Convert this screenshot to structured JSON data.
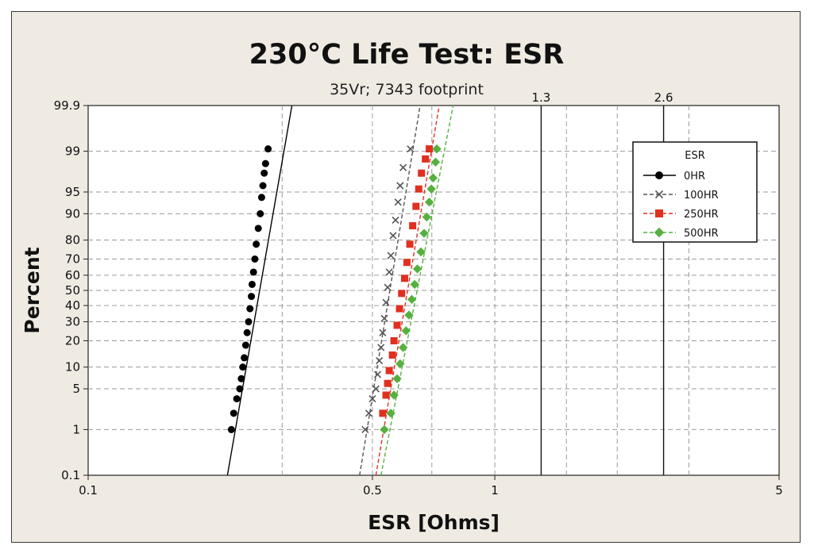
{
  "chart_data": {
    "type": "scatter",
    "title": "230°C Life Test: ESR",
    "subtitle": "35Vr; 7343 footprint",
    "xlabel": "ESR [Ohms]",
    "ylabel": "Percent",
    "x_scale": "log",
    "y_scale": "normal-probability",
    "xlim": [
      0.1,
      5
    ],
    "ylim": [
      0.1,
      99.9
    ],
    "x_ticks": [
      {
        "value": 0.1,
        "label": "0.1"
      },
      {
        "value": 0.5,
        "label": "0.5"
      },
      {
        "value": 1,
        "label": "1"
      },
      {
        "value": 5,
        "label": "5"
      }
    ],
    "x_gridlines": [
      0.3,
      0.5,
      0.7,
      1,
      1.5,
      2,
      3
    ],
    "y_ticks": [
      {
        "value": 0.1,
        "label": "0.1"
      },
      {
        "value": 1,
        "label": "1"
      },
      {
        "value": 5,
        "label": "5"
      },
      {
        "value": 10,
        "label": "10"
      },
      {
        "value": 20,
        "label": "20"
      },
      {
        "value": 30,
        "label": "30"
      },
      {
        "value": 40,
        "label": "40"
      },
      {
        "value": 50,
        "label": "50"
      },
      {
        "value": 60,
        "label": "60"
      },
      {
        "value": 70,
        "label": "70"
      },
      {
        "value": 80,
        "label": "80"
      },
      {
        "value": 90,
        "label": "90"
      },
      {
        "value": 95,
        "label": "95"
      },
      {
        "value": 99,
        "label": "99"
      },
      {
        "value": 99.9,
        "label": "99.9"
      }
    ],
    "reference_lines": [
      {
        "value": 1.3,
        "label": "1.3"
      },
      {
        "value": 2.6,
        "label": "2.6"
      }
    ],
    "grid": true,
    "legend": {
      "title": "ESR",
      "position": "top-right"
    },
    "series": [
      {
        "name": "0HR",
        "color": "#000000",
        "marker": "circle",
        "line_dash": "solid",
        "fit": {
          "p_low": 0.1,
          "x_low": 0.22,
          "p_high": 99.9,
          "x_high": 0.317
        },
        "points": [
          [
            0.225,
            1
          ],
          [
            0.228,
            2
          ],
          [
            0.232,
            3.5
          ],
          [
            0.236,
            5
          ],
          [
            0.238,
            7
          ],
          [
            0.24,
            10
          ],
          [
            0.242,
            13
          ],
          [
            0.244,
            18
          ],
          [
            0.246,
            24
          ],
          [
            0.248,
            30
          ],
          [
            0.25,
            38
          ],
          [
            0.252,
            46
          ],
          [
            0.253,
            54
          ],
          [
            0.255,
            62
          ],
          [
            0.257,
            70
          ],
          [
            0.259,
            78
          ],
          [
            0.262,
            85
          ],
          [
            0.265,
            90
          ],
          [
            0.267,
            94
          ],
          [
            0.269,
            96
          ],
          [
            0.271,
            97.5
          ],
          [
            0.273,
            98.3
          ],
          [
            0.277,
            99.1
          ]
        ]
      },
      {
        "name": "100HR",
        "color": "#555555",
        "marker": "x",
        "line_dash": "dashed",
        "fit": {
          "p_low": 0.1,
          "x_low": 0.465,
          "p_high": 99.9,
          "x_high": 0.655
        },
        "points": [
          [
            0.48,
            1
          ],
          [
            0.49,
            2
          ],
          [
            0.5,
            3.5
          ],
          [
            0.51,
            5
          ],
          [
            0.515,
            8
          ],
          [
            0.52,
            12
          ],
          [
            0.525,
            17
          ],
          [
            0.53,
            24
          ],
          [
            0.535,
            32
          ],
          [
            0.54,
            42
          ],
          [
            0.545,
            52
          ],
          [
            0.55,
            62
          ],
          [
            0.555,
            72
          ],
          [
            0.562,
            82
          ],
          [
            0.57,
            88
          ],
          [
            0.578,
            93
          ],
          [
            0.585,
            96
          ],
          [
            0.595,
            98
          ],
          [
            0.62,
            99.1
          ]
        ]
      },
      {
        "name": "250HR",
        "color": "#e03020",
        "marker": "square",
        "line_dash": "dashed",
        "fit": {
          "p_low": 0.1,
          "x_low": 0.51,
          "p_high": 99.9,
          "x_high": 0.73
        },
        "points": [
          [
            0.53,
            2
          ],
          [
            0.54,
            4
          ],
          [
            0.545,
            6
          ],
          [
            0.55,
            9
          ],
          [
            0.56,
            14
          ],
          [
            0.565,
            20
          ],
          [
            0.575,
            28
          ],
          [
            0.583,
            38
          ],
          [
            0.59,
            48
          ],
          [
            0.6,
            58
          ],
          [
            0.608,
            68
          ],
          [
            0.618,
            78
          ],
          [
            0.628,
            86
          ],
          [
            0.64,
            92
          ],
          [
            0.65,
            95.5
          ],
          [
            0.66,
            97.5
          ],
          [
            0.675,
            98.6
          ],
          [
            0.69,
            99.1
          ]
        ]
      },
      {
        "name": "500HR",
        "color": "#55b040",
        "marker": "diamond",
        "line_dash": "dashed",
        "fit": {
          "p_low": 0.1,
          "x_low": 0.525,
          "p_high": 99.9,
          "x_high": 0.79
        },
        "points": [
          [
            0.535,
            1
          ],
          [
            0.555,
            2
          ],
          [
            0.565,
            4
          ],
          [
            0.575,
            7
          ],
          [
            0.585,
            11
          ],
          [
            0.595,
            17
          ],
          [
            0.605,
            25
          ],
          [
            0.615,
            34
          ],
          [
            0.625,
            44
          ],
          [
            0.635,
            54
          ],
          [
            0.645,
            64
          ],
          [
            0.658,
            74
          ],
          [
            0.67,
            83
          ],
          [
            0.68,
            89
          ],
          [
            0.69,
            93
          ],
          [
            0.698,
            95.5
          ],
          [
            0.705,
            97
          ],
          [
            0.715,
            98.4
          ],
          [
            0.72,
            99.1
          ]
        ]
      }
    ]
  }
}
